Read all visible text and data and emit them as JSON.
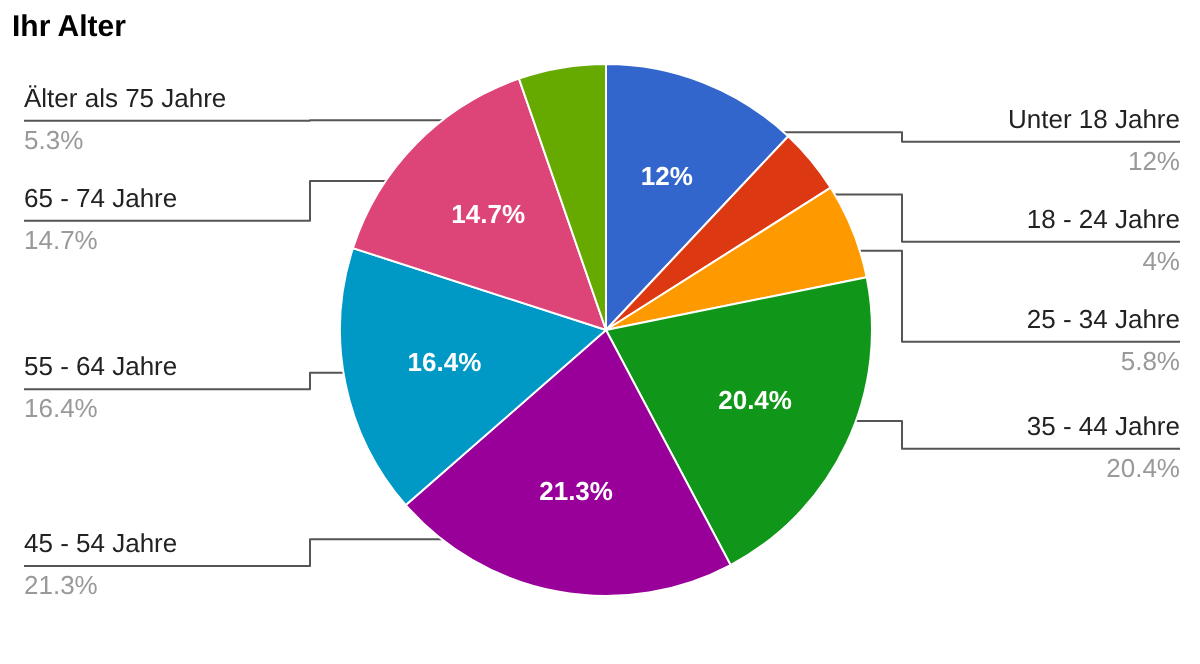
{
  "chart_data": {
    "type": "pie",
    "title": "Ihr Alter",
    "categories": [
      "Unter 18 Jahre",
      "18 - 24 Jahre",
      "25 - 34 Jahre",
      "35 - 44 Jahre",
      "45 - 54 Jahre",
      "55 - 64 Jahre",
      "65 - 74 Jahre",
      "Älter als 75 Jahre"
    ],
    "values": [
      12,
      4,
      5.8,
      20.4,
      21.3,
      16.4,
      14.7,
      5.3
    ],
    "colors": [
      "#3366cc",
      "#dc3912",
      "#ff9900",
      "#109618",
      "#990099",
      "#0099c6",
      "#dd4477",
      "#66aa00"
    ],
    "value_labels": [
      "12%",
      "4%",
      "5.8%",
      "20.4%",
      "21.3%",
      "16.4%",
      "14.7%",
      "5.3%"
    ]
  }
}
